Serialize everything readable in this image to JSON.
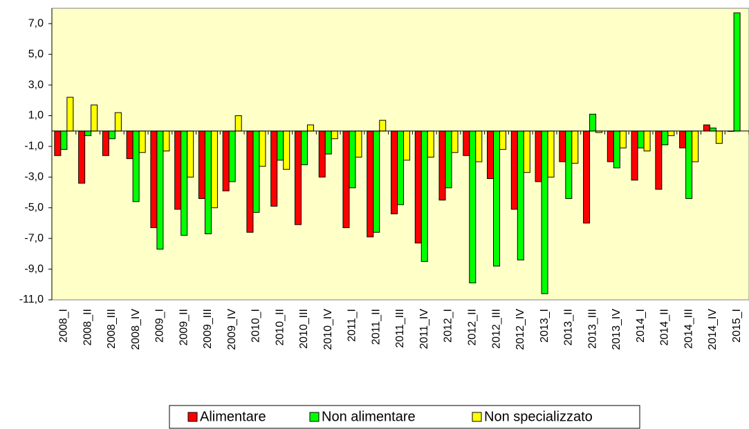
{
  "chart_data": {
    "type": "bar",
    "categories": [
      "2008_I",
      "2008_II",
      "2008_III",
      "2008_IV",
      "2009_I",
      "2009_II",
      "2009_III",
      "2009_IV",
      "2010_I",
      "2010_II",
      "2010_III",
      "2010_IV",
      "2011_I",
      "2011_II",
      "2011_III",
      "2011_IV",
      "2012_I",
      "2012_II",
      "2012_III",
      "2012_IV",
      "2013_I",
      "2013_II",
      "2013_III",
      "2013_IV",
      "2014_I",
      "2014_II",
      "2014_III",
      "2014_IV",
      "2015_I"
    ],
    "series": [
      {
        "name": "Alimentare",
        "color": "#ff0000",
        "values": [
          -1.6,
          -3.4,
          -1.6,
          -1.8,
          -6.3,
          -5.1,
          -4.4,
          -3.9,
          -6.6,
          -4.9,
          -6.1,
          -3.0,
          -6.3,
          -6.9,
          -5.4,
          -7.3,
          -4.5,
          -1.6,
          -3.1,
          -5.1,
          -3.3,
          -2.0,
          -6.0,
          -2.0,
          -3.2,
          -3.8,
          -1.1,
          0.4,
          0
        ]
      },
      {
        "name": "Non alimentare",
        "color": "#00ff00",
        "values": [
          -1.2,
          -0.3,
          -0.5,
          -4.6,
          -7.7,
          -6.8,
          -6.7,
          -3.3,
          -5.3,
          -1.9,
          -2.2,
          -1.5,
          -3.7,
          -6.6,
          -4.8,
          -8.5,
          -3.7,
          -9.9,
          -8.8,
          -8.4,
          -10.6,
          -4.4,
          1.1,
          -2.4,
          -1.1,
          -0.9,
          -4.4,
          0.2,
          7.7
        ]
      },
      {
        "name": "Non specializzato",
        "color": "#ffff00",
        "values": [
          2.2,
          1.7,
          1.2,
          -1.4,
          -1.3,
          -3.0,
          -5.0,
          1.0,
          -2.3,
          -2.5,
          0.4,
          -0.5,
          -1.7,
          0.7,
          -1.9,
          -1.7,
          -1.4,
          -2.0,
          -1.2,
          -2.7,
          -3.0,
          -2.1,
          -0.1,
          -1.1,
          -1.3,
          -0.3,
          -2.0,
          -0.8,
          null
        ]
      }
    ],
    "ylim": [
      -11,
      8
    ],
    "yticks": [
      {
        "value": -11,
        "label": "-11,0"
      },
      {
        "value": -9,
        "label": "-9,0"
      },
      {
        "value": -7,
        "label": "-7,0"
      },
      {
        "value": -5,
        "label": "-5,0"
      },
      {
        "value": -3,
        "label": "-3,0"
      },
      {
        "value": -1,
        "label": "-1,0"
      },
      {
        "value": 1,
        "label": "1,0"
      },
      {
        "value": 3,
        "label": "3,0"
      },
      {
        "value": 5,
        "label": "5,0"
      },
      {
        "value": 7,
        "label": "7,0"
      }
    ],
    "background": "#ffffc8"
  }
}
